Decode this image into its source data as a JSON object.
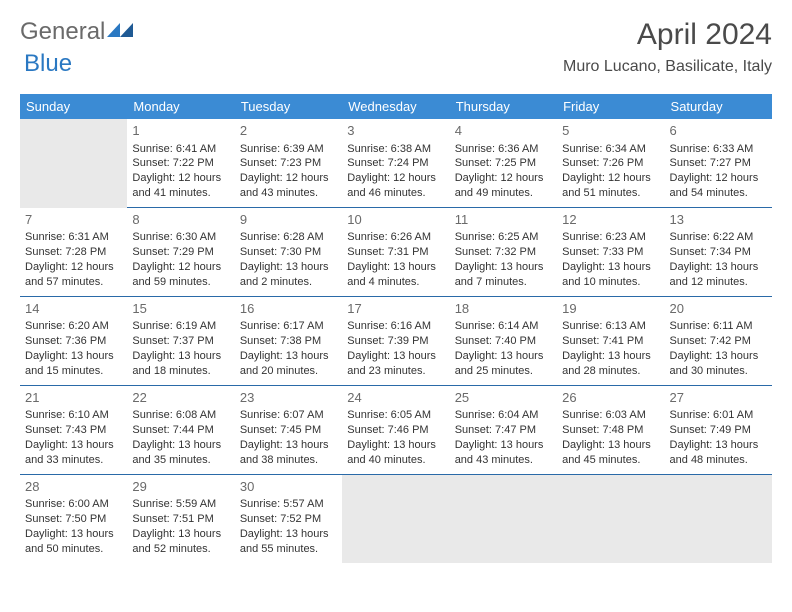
{
  "logo": {
    "text1": "General",
    "text2": "Blue"
  },
  "title": "April 2024",
  "location": "Muro Lucano, Basilicate, Italy",
  "colors": {
    "header_bg": "#3b8bd4",
    "header_text": "#ffffff",
    "rule": "#2a6aa8",
    "empty_bg": "#e9e9e9",
    "body_text": "#333333",
    "title_text": "#4a4a4a",
    "logo_accent": "#2a78c2"
  },
  "day_headers": [
    "Sunday",
    "Monday",
    "Tuesday",
    "Wednesday",
    "Thursday",
    "Friday",
    "Saturday"
  ],
  "weeks": [
    [
      null,
      {
        "n": "1",
        "sr": "6:41 AM",
        "ss": "7:22 PM",
        "dl": "12 hours and 41 minutes."
      },
      {
        "n": "2",
        "sr": "6:39 AM",
        "ss": "7:23 PM",
        "dl": "12 hours and 43 minutes."
      },
      {
        "n": "3",
        "sr": "6:38 AM",
        "ss": "7:24 PM",
        "dl": "12 hours and 46 minutes."
      },
      {
        "n": "4",
        "sr": "6:36 AM",
        "ss": "7:25 PM",
        "dl": "12 hours and 49 minutes."
      },
      {
        "n": "5",
        "sr": "6:34 AM",
        "ss": "7:26 PM",
        "dl": "12 hours and 51 minutes."
      },
      {
        "n": "6",
        "sr": "6:33 AM",
        "ss": "7:27 PM",
        "dl": "12 hours and 54 minutes."
      }
    ],
    [
      {
        "n": "7",
        "sr": "6:31 AM",
        "ss": "7:28 PM",
        "dl": "12 hours and 57 minutes."
      },
      {
        "n": "8",
        "sr": "6:30 AM",
        "ss": "7:29 PM",
        "dl": "12 hours and 59 minutes."
      },
      {
        "n": "9",
        "sr": "6:28 AM",
        "ss": "7:30 PM",
        "dl": "13 hours and 2 minutes."
      },
      {
        "n": "10",
        "sr": "6:26 AM",
        "ss": "7:31 PM",
        "dl": "13 hours and 4 minutes."
      },
      {
        "n": "11",
        "sr": "6:25 AM",
        "ss": "7:32 PM",
        "dl": "13 hours and 7 minutes."
      },
      {
        "n": "12",
        "sr": "6:23 AM",
        "ss": "7:33 PM",
        "dl": "13 hours and 10 minutes."
      },
      {
        "n": "13",
        "sr": "6:22 AM",
        "ss": "7:34 PM",
        "dl": "13 hours and 12 minutes."
      }
    ],
    [
      {
        "n": "14",
        "sr": "6:20 AM",
        "ss": "7:36 PM",
        "dl": "13 hours and 15 minutes."
      },
      {
        "n": "15",
        "sr": "6:19 AM",
        "ss": "7:37 PM",
        "dl": "13 hours and 18 minutes."
      },
      {
        "n": "16",
        "sr": "6:17 AM",
        "ss": "7:38 PM",
        "dl": "13 hours and 20 minutes."
      },
      {
        "n": "17",
        "sr": "6:16 AM",
        "ss": "7:39 PM",
        "dl": "13 hours and 23 minutes."
      },
      {
        "n": "18",
        "sr": "6:14 AM",
        "ss": "7:40 PM",
        "dl": "13 hours and 25 minutes."
      },
      {
        "n": "19",
        "sr": "6:13 AM",
        "ss": "7:41 PM",
        "dl": "13 hours and 28 minutes."
      },
      {
        "n": "20",
        "sr": "6:11 AM",
        "ss": "7:42 PM",
        "dl": "13 hours and 30 minutes."
      }
    ],
    [
      {
        "n": "21",
        "sr": "6:10 AM",
        "ss": "7:43 PM",
        "dl": "13 hours and 33 minutes."
      },
      {
        "n": "22",
        "sr": "6:08 AM",
        "ss": "7:44 PM",
        "dl": "13 hours and 35 minutes."
      },
      {
        "n": "23",
        "sr": "6:07 AM",
        "ss": "7:45 PM",
        "dl": "13 hours and 38 minutes."
      },
      {
        "n": "24",
        "sr": "6:05 AM",
        "ss": "7:46 PM",
        "dl": "13 hours and 40 minutes."
      },
      {
        "n": "25",
        "sr": "6:04 AM",
        "ss": "7:47 PM",
        "dl": "13 hours and 43 minutes."
      },
      {
        "n": "26",
        "sr": "6:03 AM",
        "ss": "7:48 PM",
        "dl": "13 hours and 45 minutes."
      },
      {
        "n": "27",
        "sr": "6:01 AM",
        "ss": "7:49 PM",
        "dl": "13 hours and 48 minutes."
      }
    ],
    [
      {
        "n": "28",
        "sr": "6:00 AM",
        "ss": "7:50 PM",
        "dl": "13 hours and 50 minutes."
      },
      {
        "n": "29",
        "sr": "5:59 AM",
        "ss": "7:51 PM",
        "dl": "13 hours and 52 minutes."
      },
      {
        "n": "30",
        "sr": "5:57 AM",
        "ss": "7:52 PM",
        "dl": "13 hours and 55 minutes."
      },
      null,
      null,
      null,
      null
    ]
  ],
  "labels": {
    "sunrise": "Sunrise:",
    "sunset": "Sunset:",
    "daylight": "Daylight:"
  }
}
